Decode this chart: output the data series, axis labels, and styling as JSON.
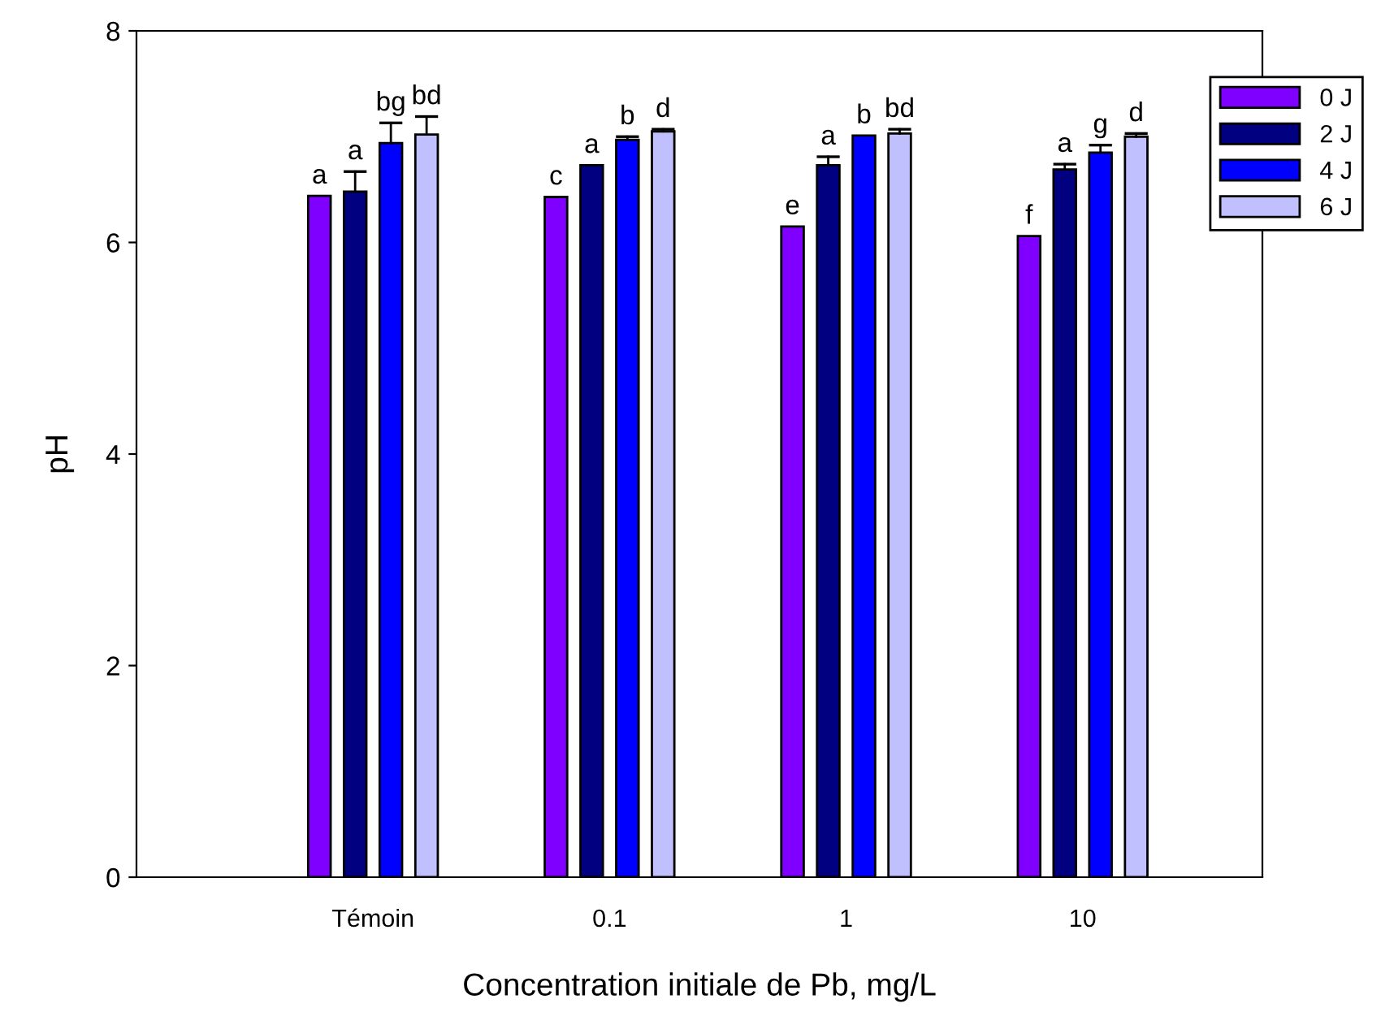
{
  "chart_data": {
    "type": "bar",
    "xlabel": "Concentration initiale de Pb, mg/L",
    "ylabel": "pH",
    "categories": [
      "Témoin",
      "0.1",
      "1",
      "10"
    ],
    "series": [
      {
        "name": "0 J",
        "color": "#7f00ff",
        "values": [
          6.44,
          6.43,
          6.15,
          6.06
        ],
        "value_labels": [
          "a",
          "c",
          "e",
          "f"
        ],
        "errors": [
          null,
          null,
          null,
          null
        ]
      },
      {
        "name": "2 J",
        "color": "#000080",
        "values": [
          6.48,
          6.73,
          6.73,
          6.69
        ],
        "value_labels": [
          "a",
          "a",
          "a",
          "a"
        ],
        "errors": [
          [
            6.48,
            6.67
          ],
          null,
          [
            6.73,
            6.81
          ],
          [
            6.69,
            6.74
          ]
        ]
      },
      {
        "name": "4 J",
        "color": "#0000ff",
        "values": [
          6.94,
          6.97,
          7.01,
          6.85
        ],
        "value_labels": [
          "bg",
          "b",
          "b",
          "g"
        ],
        "errors": [
          [
            6.94,
            7.13
          ],
          [
            6.97,
            7.0
          ],
          null,
          [
            6.85,
            6.92
          ]
        ]
      },
      {
        "name": "6 J",
        "color": "#c0c0ff",
        "values": [
          7.02,
          7.05,
          7.03,
          7.0
        ],
        "value_labels": [
          "bd",
          "d",
          "bd",
          "d"
        ],
        "errors": [
          [
            7.02,
            7.19
          ],
          [
            7.05,
            7.07
          ],
          [
            7.03,
            7.07
          ],
          [
            7.0,
            7.03
          ]
        ]
      }
    ],
    "ylim": [
      0,
      8
    ],
    "yticks": [
      0,
      2,
      4,
      6,
      8
    ],
    "grid": false,
    "legend": "top right"
  }
}
